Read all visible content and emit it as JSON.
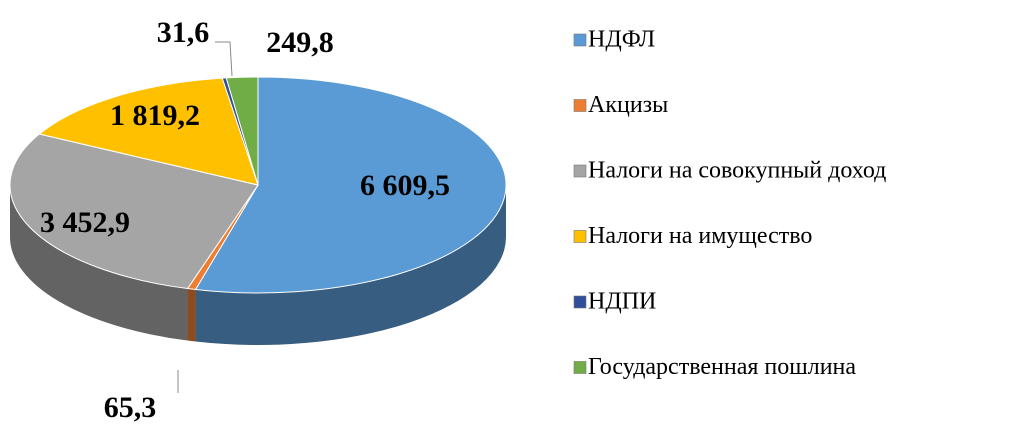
{
  "chart_data": {
    "type": "pie",
    "categories": [
      "НДФЛ",
      "Акцизы",
      "Налоги на совокупный доход",
      "Налоги на имущество",
      "НДПИ",
      "Государственная пошлина"
    ],
    "values": [
      6609.5,
      65.3,
      3452.9,
      1819.2,
      31.6,
      249.8
    ],
    "value_labels": [
      "6 609,5",
      "65,3",
      "3 452,9",
      "1 819,2",
      "31,6",
      "249,8"
    ],
    "colors": [
      "#5b9bd5",
      "#ed7d31",
      "#a5a5a5",
      "#ffc000",
      "#2f4f9a",
      "#70ad47"
    ],
    "legend": "right"
  }
}
